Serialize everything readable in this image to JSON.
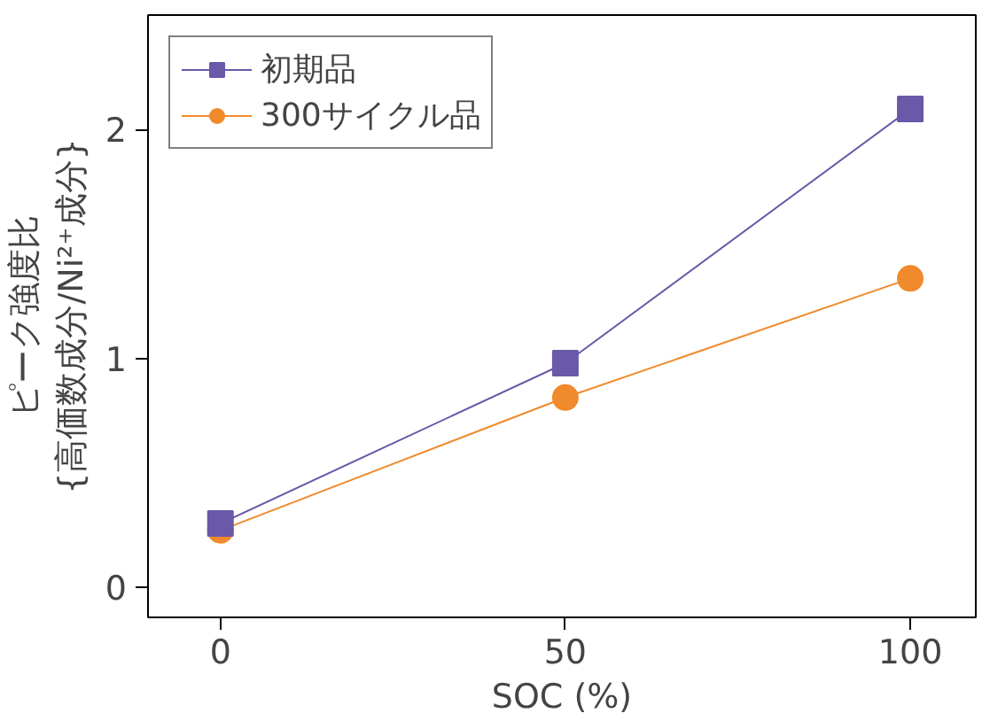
{
  "chart_data": {
    "type": "line",
    "xlabel": "SOC (%)",
    "ylabel": "ピーク強度比\n{高価数成分/Ni²⁺成分}",
    "x": [
      0,
      50,
      100
    ],
    "xlim": [
      -10.5,
      109.5
    ],
    "xticks": [
      0,
      50,
      100
    ],
    "ylim": [
      -0.13,
      2.5
    ],
    "yticks": [
      0,
      1,
      2
    ],
    "series": [
      {
        "name": "初期品",
        "color": "#6a58a8",
        "values": [
          0.28,
          0.98,
          2.09
        ],
        "marker": "square"
      },
      {
        "name": "300サイクル品",
        "color": "#f08a2c",
        "values": [
          0.25,
          0.83,
          1.35
        ],
        "marker": "circle"
      }
    ],
    "legend": "top left",
    "grid": false,
    "line_style": "solid"
  }
}
